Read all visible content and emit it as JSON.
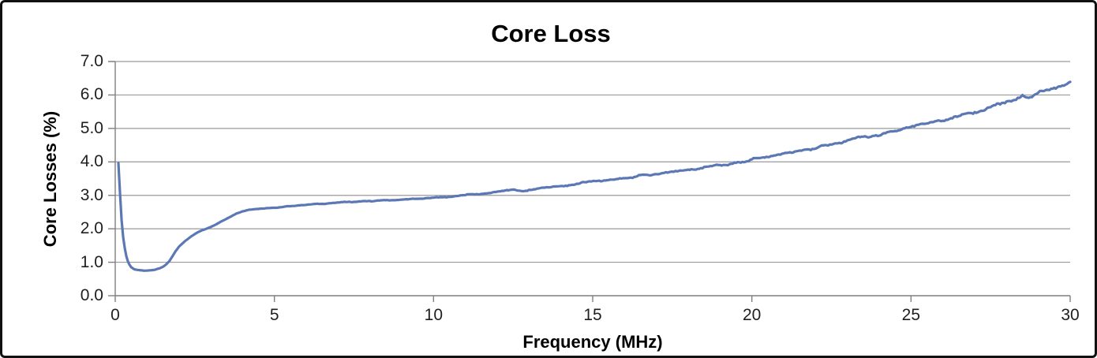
{
  "chart_data": {
    "type": "line",
    "title": "Core Loss",
    "xlabel": "Frequency (MHz)",
    "ylabel": "Core Losses (%)",
    "xlim": [
      0,
      30
    ],
    "ylim": [
      0.0,
      7.0
    ],
    "xticks": [
      0,
      5,
      10,
      15,
      20,
      25,
      30
    ],
    "xtick_labels": [
      "0",
      "5",
      "10",
      "15",
      "20",
      "25",
      "30"
    ],
    "yticks": [
      0,
      1,
      2,
      3,
      4,
      5,
      6,
      7
    ],
    "ytick_labels": [
      "0.0",
      "1.0",
      "2.0",
      "3.0",
      "4.0",
      "5.0",
      "6.0",
      "7.0"
    ],
    "grid": "horizontal",
    "legend": "none",
    "colors": {
      "line": "#5B78B4",
      "gridline": "#9A9A9A",
      "axis": "#7F7F7F",
      "text": "#1F1F1F",
      "title": "#000000",
      "frame_border": "#111111",
      "background": "#FFFFFF"
    },
    "noise_amplitude_pct": 0.055,
    "series": [
      {
        "name": "Core Loss",
        "points": [
          [
            0.1,
            3.97
          ],
          [
            0.13,
            3.45
          ],
          [
            0.16,
            2.85
          ],
          [
            0.2,
            2.25
          ],
          [
            0.25,
            1.74
          ],
          [
            0.3,
            1.42
          ],
          [
            0.35,
            1.18
          ],
          [
            0.4,
            1.02
          ],
          [
            0.45,
            0.92
          ],
          [
            0.5,
            0.85
          ],
          [
            0.6,
            0.79
          ],
          [
            0.7,
            0.77
          ],
          [
            0.8,
            0.76
          ],
          [
            0.9,
            0.75
          ],
          [
            1.0,
            0.75
          ],
          [
            1.1,
            0.76
          ],
          [
            1.2,
            0.77
          ],
          [
            1.3,
            0.79
          ],
          [
            1.4,
            0.82
          ],
          [
            1.5,
            0.86
          ],
          [
            1.6,
            0.93
          ],
          [
            1.7,
            1.03
          ],
          [
            1.8,
            1.18
          ],
          [
            1.9,
            1.33
          ],
          [
            2.0,
            1.46
          ],
          [
            2.2,
            1.64
          ],
          [
            2.4,
            1.78
          ],
          [
            2.6,
            1.9
          ],
          [
            2.8,
            1.98
          ],
          [
            3.0,
            2.06
          ],
          [
            3.2,
            2.15
          ],
          [
            3.4,
            2.25
          ],
          [
            3.6,
            2.35
          ],
          [
            3.8,
            2.45
          ],
          [
            4.0,
            2.52
          ],
          [
            4.2,
            2.56
          ],
          [
            4.5,
            2.6
          ],
          [
            5.0,
            2.63
          ],
          [
            5.5,
            2.67
          ],
          [
            6.0,
            2.71
          ],
          [
            6.5,
            2.75
          ],
          [
            7.0,
            2.78
          ],
          [
            7.5,
            2.81
          ],
          [
            8.0,
            2.83
          ],
          [
            8.5,
            2.85
          ],
          [
            9.0,
            2.88
          ],
          [
            9.5,
            2.9
          ],
          [
            10.0,
            2.93
          ],
          [
            10.5,
            2.96
          ],
          [
            11.0,
            3.0
          ],
          [
            11.5,
            3.05
          ],
          [
            12.0,
            3.1
          ],
          [
            12.5,
            3.16
          ],
          [
            12.8,
            3.13
          ],
          [
            13.0,
            3.17
          ],
          [
            13.5,
            3.22
          ],
          [
            14.0,
            3.28
          ],
          [
            14.5,
            3.34
          ],
          [
            15.0,
            3.4
          ],
          [
            15.5,
            3.46
          ],
          [
            16.0,
            3.52
          ],
          [
            16.5,
            3.58
          ],
          [
            17.0,
            3.64
          ],
          [
            17.5,
            3.7
          ],
          [
            18.0,
            3.76
          ],
          [
            18.5,
            3.82
          ],
          [
            19.0,
            3.89
          ],
          [
            19.5,
            3.97
          ],
          [
            20.0,
            4.06
          ],
          [
            20.5,
            4.15
          ],
          [
            21.0,
            4.24
          ],
          [
            21.5,
            4.33
          ],
          [
            22.0,
            4.43
          ],
          [
            22.5,
            4.53
          ],
          [
            23.0,
            4.63
          ],
          [
            23.5,
            4.73
          ],
          [
            24.0,
            4.83
          ],
          [
            24.5,
            4.93
          ],
          [
            25.0,
            5.03
          ],
          [
            25.5,
            5.14
          ],
          [
            26.0,
            5.26
          ],
          [
            26.5,
            5.38
          ],
          [
            27.0,
            5.5
          ],
          [
            27.5,
            5.63
          ],
          [
            28.0,
            5.77
          ],
          [
            28.3,
            5.84
          ],
          [
            28.5,
            5.96
          ],
          [
            28.7,
            5.9
          ],
          [
            29.0,
            6.05
          ],
          [
            29.5,
            6.21
          ],
          [
            30.0,
            6.38
          ]
        ]
      }
    ]
  }
}
